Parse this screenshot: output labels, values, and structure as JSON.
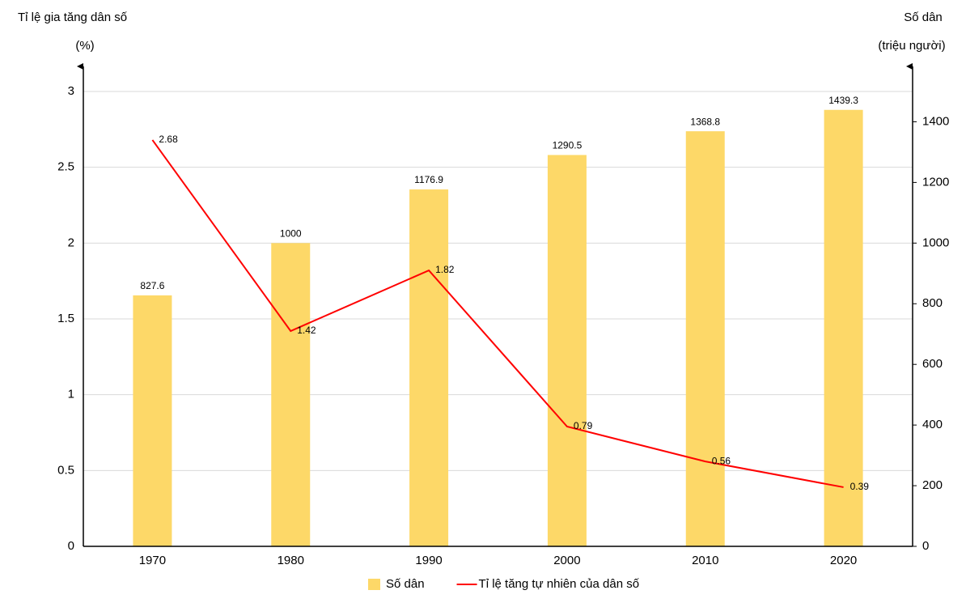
{
  "chart_data": {
    "type": "bar",
    "y_label": "Tỉ lệ gia tăng dân số",
    "y_unit": "(%)",
    "y2_label": "Số dân",
    "y2_unit": "(triệu người)",
    "categories": [
      "1970",
      "1980",
      "1990",
      "2000",
      "2010",
      "2020"
    ],
    "series": [
      {
        "name": "Số dân",
        "type": "bar",
        "axis": "y2",
        "color": "#fdd868",
        "values": [
          827.6,
          1000,
          1176.9,
          1290.5,
          1368.8,
          1439.3
        ]
      },
      {
        "name": "Tỉ lệ tăng tự nhiên của dân số",
        "type": "line",
        "color": "#ff0000",
        "values": [
          2.68,
          1.42,
          1.82,
          0.79,
          0.56,
          0.39
        ]
      }
    ],
    "ylim": [
      0,
      3
    ],
    "yticks": [
      0,
      0.5,
      1,
      1.5,
      2,
      2.5,
      3
    ],
    "y2lim": [
      0,
      1500
    ],
    "y2ticks": [
      0,
      200,
      400,
      600,
      800,
      1000,
      1200,
      1400
    ],
    "grid": true
  }
}
